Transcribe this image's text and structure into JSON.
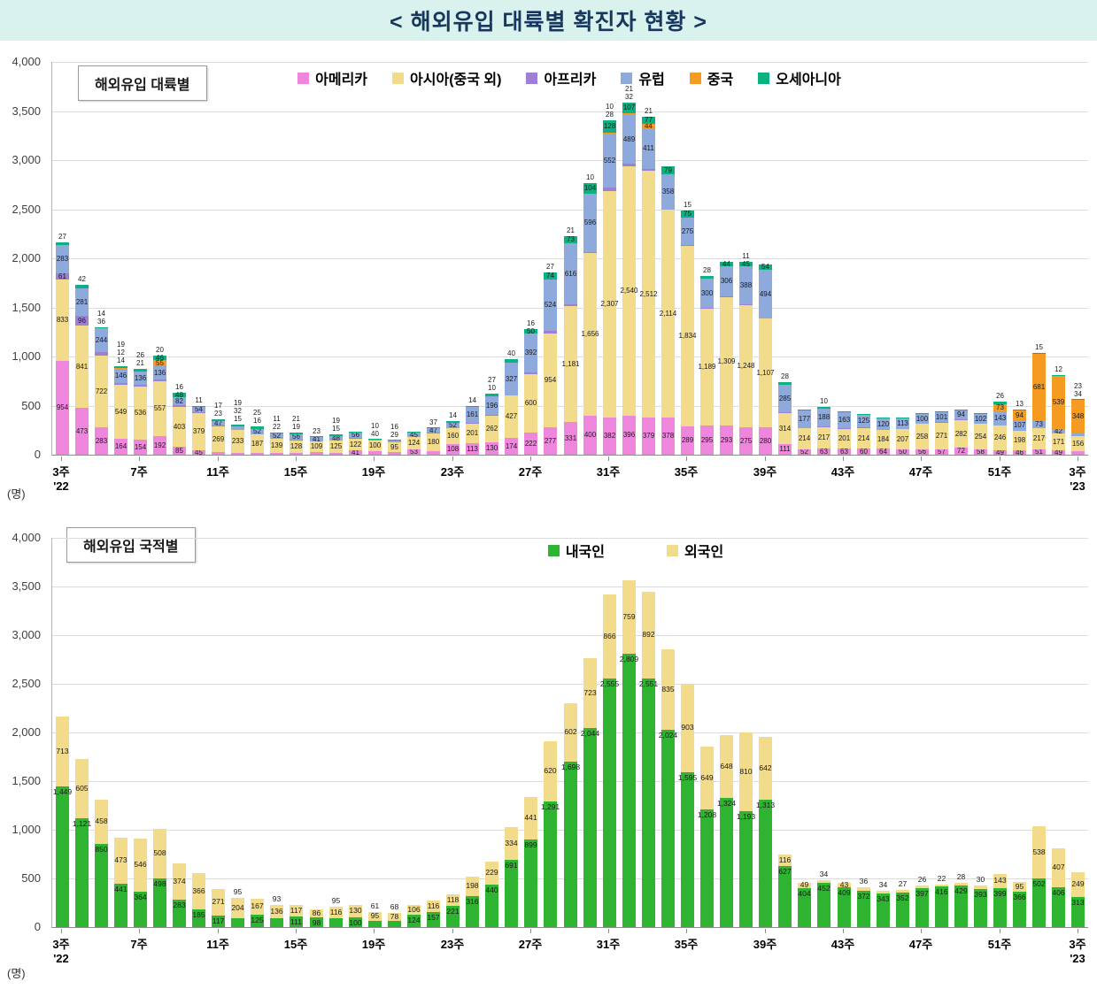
{
  "title": "< 해외유입 대륙별 확진자 현황 >",
  "unit_label": "(명)",
  "chart_data": [
    {
      "type": "bar",
      "stacked": true,
      "title": "해외유입 대륙별",
      "ylim": [
        0,
        4000
      ],
      "ytick_step": 500,
      "label_min": 10,
      "legend_position": "top",
      "x_ticks": [
        {
          "i": 0,
          "label": "3주",
          "sub": "'22"
        },
        {
          "i": 4,
          "label": "7주"
        },
        {
          "i": 8,
          "label": "11주"
        },
        {
          "i": 12,
          "label": "15주"
        },
        {
          "i": 16,
          "label": "19주"
        },
        {
          "i": 20,
          "label": "23주"
        },
        {
          "i": 24,
          "label": "27주"
        },
        {
          "i": 28,
          "label": "31주"
        },
        {
          "i": 32,
          "label": "35주"
        },
        {
          "i": 36,
          "label": "39주"
        },
        {
          "i": 40,
          "label": "43주"
        },
        {
          "i": 44,
          "label": "47주"
        },
        {
          "i": 48,
          "label": "51주"
        },
        {
          "i": 52,
          "label": "3주",
          "sub": "'23"
        }
      ],
      "series": [
        {
          "name": "아메리카",
          "color": "#ef86dd",
          "values": [
            954,
            473,
            283,
            164,
            154,
            192,
            85,
            45,
            23,
            15,
            16,
            22,
            19,
            23,
            15,
            41,
            40,
            29,
            53,
            37,
            108,
            113,
            130,
            174,
            222,
            277,
            331,
            400,
            382,
            396,
            379,
            378,
            289,
            295,
            293,
            275,
            280,
            111,
            52,
            63,
            63,
            60,
            64,
            50,
            56,
            57,
            72,
            58,
            49,
            46,
            51,
            49,
            34
          ]
        },
        {
          "name": "아시아(중국 외)",
          "color": "#f2db8a",
          "values": [
            833,
            841,
            722,
            549,
            536,
            557,
            403,
            379,
            269,
            233,
            187,
            139,
            128,
            109,
            125,
            122,
            100,
            95,
            124,
            180,
            160,
            201,
            262,
            427,
            600,
            954,
            1181,
            1656,
            2307,
            2540,
            2512,
            2114,
            1834,
            1189,
            1309,
            1248,
            1107,
            314,
            214,
            217,
            201,
            214,
            184,
            207,
            258,
            271,
            282,
            254,
            246,
            198,
            217,
            171,
            156
          ]
        },
        {
          "name": "아프리카",
          "color": "#9e7fd6",
          "values": [
            61,
            96,
            36,
            14,
            21,
            20,
            16,
            5,
            6,
            5,
            5,
            5,
            4,
            4,
            4,
            4,
            3,
            3,
            4,
            5,
            5,
            8,
            10,
            7,
            16,
            27,
            21,
            10,
            28,
            32,
            21,
            6,
            15,
            7,
            9,
            11,
            3,
            5,
            3,
            4,
            3,
            3,
            3,
            3,
            3,
            3,
            3,
            3,
            5,
            3,
            3,
            0,
            0
          ]
        },
        {
          "name": "유럽",
          "color": "#8ea9db",
          "values": [
            283,
            281,
            244,
            146,
            136,
            136,
            82,
            54,
            47,
            32,
            52,
            52,
            56,
            41,
            48,
            56,
            10,
            16,
            45,
            47,
            52,
            161,
            196,
            327,
            392,
            524,
            616,
            596,
            552,
            489,
            411,
            358,
            275,
            300,
            306,
            388,
            494,
            285,
            177,
            188,
            163,
            125,
            120,
            113,
            100,
            101,
            94,
            102,
            143,
            107,
            73,
            42,
            23
          ]
        },
        {
          "name": "중국",
          "color": "#f59b22",
          "values": [
            0,
            0,
            0,
            12,
            0,
            55,
            0,
            0,
            0,
            0,
            0,
            0,
            0,
            0,
            0,
            0,
            0,
            0,
            0,
            0,
            0,
            0,
            0,
            0,
            0,
            0,
            0,
            0,
            10,
            21,
            44,
            0,
            0,
            0,
            0,
            0,
            0,
            0,
            0,
            0,
            0,
            0,
            0,
            0,
            0,
            0,
            0,
            0,
            73,
            94,
            681,
            539,
            348
          ]
        },
        {
          "name": "오세아니아",
          "color": "#0cb181",
          "values": [
            27,
            42,
            14,
            19,
            26,
            46,
            48,
            11,
            17,
            19,
            25,
            11,
            21,
            7,
            19,
            7,
            3,
            3,
            4,
            4,
            14,
            14,
            27,
            40,
            50,
            74,
            73,
            104,
            128,
            107,
            77,
            79,
            75,
            28,
            44,
            45,
            54,
            28,
            6,
            10,
            6,
            6,
            6,
            6,
            6,
            6,
            6,
            6,
            26,
            13,
            15,
            12,
            1
          ]
        }
      ]
    },
    {
      "type": "bar",
      "stacked": true,
      "title": "해외유입 국적별",
      "ylim": [
        0,
        4000
      ],
      "ytick_step": 500,
      "label_min": 1,
      "legend_position": "top",
      "x_ticks": [
        {
          "i": 0,
          "label": "3주",
          "sub": "'22"
        },
        {
          "i": 4,
          "label": "7주"
        },
        {
          "i": 8,
          "label": "11주"
        },
        {
          "i": 12,
          "label": "15주"
        },
        {
          "i": 16,
          "label": "19주"
        },
        {
          "i": 20,
          "label": "23주"
        },
        {
          "i": 24,
          "label": "27주"
        },
        {
          "i": 28,
          "label": "31주"
        },
        {
          "i": 32,
          "label": "35주"
        },
        {
          "i": 36,
          "label": "39주"
        },
        {
          "i": 40,
          "label": "43주"
        },
        {
          "i": 44,
          "label": "47주"
        },
        {
          "i": 48,
          "label": "51주"
        },
        {
          "i": 52,
          "label": "3주",
          "sub": "'23"
        }
      ],
      "series": [
        {
          "name": "내국인",
          "color": "#2eb430",
          "label_pos": "inside-end",
          "values": [
            1449,
            1121,
            850,
            441,
            364,
            498,
            283,
            185,
            117,
            95,
            125,
            93,
            111,
            98,
            95,
            100,
            61,
            68,
            124,
            157,
            221,
            316,
            440,
            691,
            899,
            1291,
            1698,
            2044,
            2555,
            2809,
            2551,
            2024,
            1595,
            1208,
            1324,
            1193,
            1313,
            627,
            404,
            452,
            409,
            372,
            343,
            352,
            397,
            416,
            429,
            393,
            399,
            366,
            502,
            406,
            313
          ]
        },
        {
          "name": "외국인",
          "color": "#f2db8a",
          "label_pos": "center",
          "values": [
            713,
            605,
            458,
            473,
            546,
            508,
            374,
            366,
            271,
            204,
            167,
            136,
            117,
            86,
            116,
            130,
            95,
            78,
            106,
            116,
            118,
            198,
            229,
            334,
            441,
            620,
            602,
            723,
            866,
            759,
            892,
            835,
            903,
            649,
            648,
            810,
            642,
            116,
            49,
            34,
            43,
            36,
            34,
            27,
            26,
            22,
            28,
            30,
            143,
            95,
            538,
            407,
            249
          ]
        }
      ]
    }
  ]
}
